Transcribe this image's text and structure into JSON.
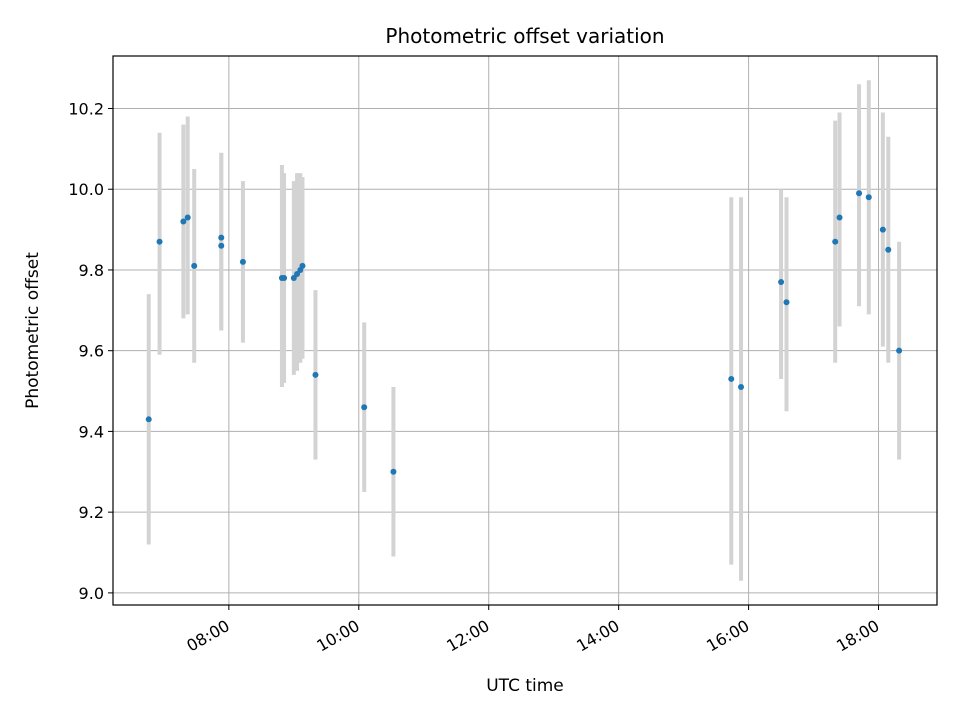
{
  "chart_data": {
    "type": "scatter",
    "title": "Photometric offset variation",
    "xlabel": "UTC time",
    "ylabel": "Photometric offset",
    "x_ticks": [
      "08:00",
      "10:00",
      "12:00",
      "14:00",
      "16:00",
      "18:00"
    ],
    "y_ticks": [
      "9.0",
      "9.2",
      "9.4",
      "9.6",
      "9.8",
      "10.0",
      "10.2"
    ],
    "xlim": [
      "06:13",
      "18:54"
    ],
    "ylim": [
      8.97,
      10.33
    ],
    "grid": true,
    "colors": {
      "point": "#1f77b4",
      "errorbar": "#d3d3d3",
      "grid": "#b0b0b0"
    },
    "points": [
      {
        "x": "06:46",
        "y": 9.43,
        "ymin": 9.12,
        "ymax": 9.74
      },
      {
        "x": "06:56",
        "y": 9.87,
        "ymin": 9.59,
        "ymax": 10.14
      },
      {
        "x": "07:18",
        "y": 9.92,
        "ymin": 9.68,
        "ymax": 10.16
      },
      {
        "x": "07:22",
        "y": 9.93,
        "ymin": 9.69,
        "ymax": 10.18
      },
      {
        "x": "07:28",
        "y": 9.81,
        "ymin": 9.57,
        "ymax": 10.05
      },
      {
        "x": "07:53",
        "y": 9.88,
        "ymin": 9.65,
        "ymax": 10.09
      },
      {
        "x": "07:53",
        "y": 9.86,
        "ymin": 9.65,
        "ymax": 10.09
      },
      {
        "x": "08:13",
        "y": 9.82,
        "ymin": 9.62,
        "ymax": 10.02
      },
      {
        "x": "08:49",
        "y": 9.78,
        "ymin": 9.51,
        "ymax": 10.06
      },
      {
        "x": "08:51",
        "y": 9.78,
        "ymin": 9.52,
        "ymax": 10.04
      },
      {
        "x": "09:00",
        "y": 9.78,
        "ymin": 9.54,
        "ymax": 10.02
      },
      {
        "x": "09:03",
        "y": 9.79,
        "ymin": 9.55,
        "ymax": 10.04
      },
      {
        "x": "09:06",
        "y": 9.8,
        "ymin": 9.57,
        "ymax": 10.04
      },
      {
        "x": "09:08",
        "y": 9.81,
        "ymin": 9.58,
        "ymax": 10.03
      },
      {
        "x": "09:20",
        "y": 9.54,
        "ymin": 9.33,
        "ymax": 9.75
      },
      {
        "x": "10:05",
        "y": 9.46,
        "ymin": 9.25,
        "ymax": 9.67
      },
      {
        "x": "10:32",
        "y": 9.3,
        "ymin": 9.09,
        "ymax": 9.51
      },
      {
        "x": "15:44",
        "y": 9.53,
        "ymin": 9.07,
        "ymax": 9.98
      },
      {
        "x": "15:53",
        "y": 9.51,
        "ymin": 9.03,
        "ymax": 9.98
      },
      {
        "x": "16:30",
        "y": 9.77,
        "ymin": 9.53,
        "ymax": 10.0
      },
      {
        "x": "16:35",
        "y": 9.72,
        "ymin": 9.45,
        "ymax": 9.98
      },
      {
        "x": "17:20",
        "y": 9.87,
        "ymin": 9.57,
        "ymax": 10.17
      },
      {
        "x": "17:24",
        "y": 9.93,
        "ymin": 9.66,
        "ymax": 10.19
      },
      {
        "x": "17:42",
        "y": 9.99,
        "ymin": 9.71,
        "ymax": 10.26
      },
      {
        "x": "17:51",
        "y": 9.98,
        "ymin": 9.69,
        "ymax": 10.27
      },
      {
        "x": "18:04",
        "y": 9.9,
        "ymin": 9.61,
        "ymax": 10.19
      },
      {
        "x": "18:09",
        "y": 9.85,
        "ymin": 9.57,
        "ymax": 10.13
      },
      {
        "x": "18:19",
        "y": 9.6,
        "ymin": 9.33,
        "ymax": 9.87
      }
    ]
  }
}
